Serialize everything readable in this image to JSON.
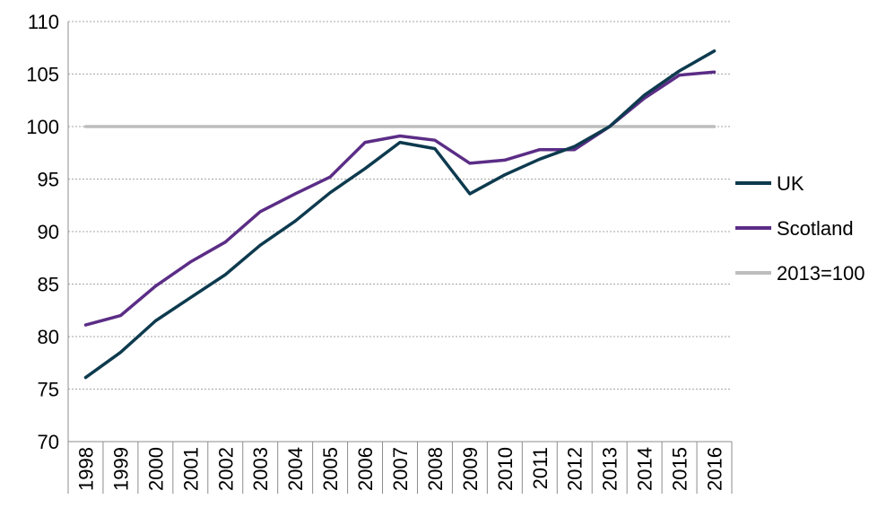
{
  "chart_data": {
    "type": "line",
    "x": [
      "1998",
      "1999",
      "2000",
      "2001",
      "2002",
      "2003",
      "2004",
      "2005",
      "2006",
      "2007",
      "2008",
      "2009",
      "2010",
      "2011",
      "2012",
      "2013",
      "2014",
      "2015",
      "2016"
    ],
    "ylim": [
      70,
      110
    ],
    "yticks": [
      "70",
      "75",
      "80",
      "85",
      "90",
      "95",
      "100",
      "105",
      "110"
    ],
    "grid": "horizontal dashed",
    "legend_position": "right",
    "series": [
      {
        "name": "UK",
        "color": "#0d3a4e",
        "values": [
          76.1,
          78.5,
          81.5,
          83.7,
          85.9,
          88.7,
          91.0,
          93.7,
          96.0,
          98.5,
          97.9,
          93.6,
          95.4,
          96.9,
          98.1,
          100.0,
          103.0,
          105.3,
          107.2
        ]
      },
      {
        "name": "Scotland",
        "color": "#5b2d86",
        "values": [
          81.1,
          82.0,
          84.8,
          87.1,
          89.0,
          91.9,
          93.6,
          95.2,
          98.5,
          99.1,
          98.7,
          96.5,
          96.8,
          97.8,
          97.8,
          100.0,
          102.7,
          104.9,
          105.2
        ]
      },
      {
        "name": "2013=100",
        "color": "#bdbdbd",
        "values": [
          100,
          100,
          100,
          100,
          100,
          100,
          100,
          100,
          100,
          100,
          100,
          100,
          100,
          100,
          100,
          100,
          100,
          100,
          100
        ]
      }
    ]
  }
}
